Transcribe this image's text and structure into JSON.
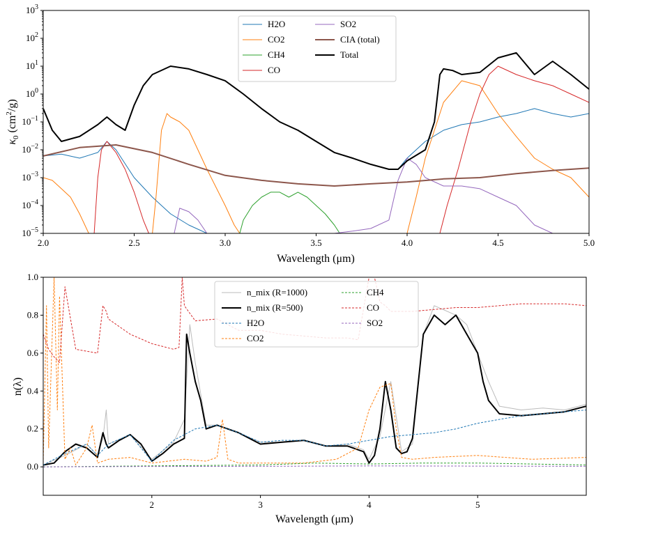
{
  "chart_data": [
    {
      "type": "line",
      "yscale": "log",
      "xlabel": "Wavelength (μm)",
      "ylabel_main": "κ",
      "ylabel_sub": "0",
      "ylabel_rest": " (cm",
      "ylabel_sup": "2",
      "ylabel_end": "/g)",
      "xlim": [
        2.0,
        5.0
      ],
      "ylim": [
        1e-05,
        1000
      ],
      "xticks": [
        2.0,
        2.5,
        3.0,
        3.5,
        4.0,
        4.5,
        5.0
      ],
      "xtick_labels": [
        "2.0",
        "2.5",
        "3.0",
        "3.5",
        "4.0",
        "4.5",
        "5.0"
      ],
      "ytick_exponents": [
        -5,
        -4,
        -3,
        -2,
        -1,
        0,
        1,
        2,
        3
      ],
      "ytick_base": "10",
      "legend_loc": "upper center",
      "series": [
        {
          "name": "H2O",
          "color": "#1f77b4",
          "lw": 1,
          "x": [
            2.0,
            2.1,
            2.2,
            2.3,
            2.35,
            2.4,
            2.5,
            2.6,
            2.7,
            2.8,
            2.9
          ],
          "y": [
            0.006,
            0.007,
            0.005,
            0.008,
            0.02,
            0.01,
            0.001,
            0.0002,
            5e-05,
            2e-05,
            1e-05
          ]
        },
        {
          "name": "H2O",
          "color": "#1f77b4",
          "lw": 1,
          "x": [
            3.95,
            4.0,
            4.1,
            4.2,
            4.3,
            4.4,
            4.5,
            4.6,
            4.7,
            4.8,
            4.9,
            5.0
          ],
          "y": [
            0.002,
            0.005,
            0.02,
            0.05,
            0.08,
            0.1,
            0.15,
            0.2,
            0.3,
            0.2,
            0.15,
            0.2
          ]
        },
        {
          "name": "CO2",
          "color": "#ff7f0e",
          "lw": 1,
          "x": [
            2.0,
            2.05,
            2.1,
            2.15,
            2.2,
            2.25
          ],
          "y": [
            0.001,
            0.0008,
            0.0004,
            0.0002,
            5e-05,
            1e-05
          ]
        },
        {
          "name": "CO2",
          "color": "#ff7f0e",
          "lw": 1,
          "x": [
            2.6,
            2.62,
            2.65,
            2.68,
            2.7,
            2.75,
            2.8,
            2.85,
            2.9,
            3.0,
            3.05,
            3.08
          ],
          "y": [
            1e-05,
            0.0002,
            0.05,
            0.2,
            0.15,
            0.1,
            0.05,
            0.01,
            0.002,
            0.0001,
            2e-05,
            1e-05
          ]
        },
        {
          "name": "CO2",
          "color": "#ff7f0e",
          "lw": 1,
          "x": [
            4.0,
            4.05,
            4.1,
            4.15,
            4.2,
            4.3,
            4.4,
            4.5,
            4.6,
            4.7,
            4.8,
            4.9,
            5.0
          ],
          "y": [
            1e-05,
            0.0002,
            0.005,
            0.05,
            0.5,
            3,
            2,
            0.2,
            0.03,
            0.005,
            0.002,
            0.001,
            0.0002
          ]
        },
        {
          "name": "CH4",
          "color": "#2ca02c",
          "lw": 1,
          "x": [
            3.08,
            3.1,
            3.15,
            3.2,
            3.25,
            3.3,
            3.35,
            3.4,
            3.45,
            3.5,
            3.55,
            3.6,
            3.63
          ],
          "y": [
            1e-05,
            3e-05,
            0.0001,
            0.0002,
            0.0003,
            0.0003,
            0.0002,
            0.0003,
            0.0002,
            0.0001,
            5e-05,
            2e-05,
            1e-05
          ]
        },
        {
          "name": "CO",
          "color": "#d62728",
          "lw": 1,
          "x": [
            2.28,
            2.3,
            2.32,
            2.35,
            2.4,
            2.45,
            2.5,
            2.55,
            2.58
          ],
          "y": [
            1e-05,
            0.001,
            0.01,
            0.02,
            0.008,
            0.002,
            0.0003,
            3e-05,
            1e-05
          ]
        },
        {
          "name": "CO",
          "color": "#d62728",
          "lw": 1,
          "x": [
            4.18,
            4.22,
            4.28,
            4.35,
            4.4,
            4.45,
            4.5,
            4.6,
            4.7,
            4.8,
            4.9,
            5.0
          ],
          "y": [
            1e-05,
            0.0001,
            0.002,
            0.1,
            1,
            5,
            10,
            5,
            3,
            2,
            1,
            0.5
          ]
        },
        {
          "name": "SO2",
          "color": "#9467bd",
          "lw": 1,
          "x": [
            2.72,
            2.75,
            2.8,
            2.85,
            2.9
          ],
          "y": [
            1e-05,
            8e-05,
            6e-05,
            3e-05,
            1e-05
          ]
        },
        {
          "name": "SO2",
          "color": "#9467bd",
          "lw": 1,
          "x": [
            3.6,
            3.7,
            3.8,
            3.9,
            3.95,
            4.0,
            4.05,
            4.1,
            4.2,
            4.3,
            4.4,
            4.5,
            4.6,
            4.7,
            4.8
          ],
          "y": [
            1e-05,
            1.2e-05,
            1.5e-05,
            3e-05,
            0.0008,
            0.005,
            0.003,
            0.001,
            0.0005,
            0.0005,
            0.0004,
            0.0002,
            0.0001,
            2e-05,
            1e-05
          ]
        },
        {
          "name": "CIA (total)",
          "color": "#8c564b",
          "lw": 2,
          "x": [
            2.0,
            2.2,
            2.4,
            2.6,
            2.8,
            3.0,
            3.2,
            3.4,
            3.6,
            3.8,
            4.0,
            4.2,
            4.4,
            4.6,
            4.8,
            5.0
          ],
          "y": [
            0.006,
            0.012,
            0.015,
            0.008,
            0.003,
            0.0012,
            0.0008,
            0.0006,
            0.0005,
            0.0006,
            0.0007,
            0.0009,
            0.001,
            0.0014,
            0.0018,
            0.0022
          ]
        },
        {
          "name": "Total",
          "color": "#000000",
          "lw": 2,
          "x": [
            2.0,
            2.05,
            2.1,
            2.2,
            2.3,
            2.35,
            2.4,
            2.45,
            2.5,
            2.55,
            2.6,
            2.7,
            2.8,
            2.9,
            3.0,
            3.1,
            3.2,
            3.3,
            3.4,
            3.5,
            3.6,
            3.7,
            3.8,
            3.9,
            3.95,
            4.0,
            4.1,
            4.15,
            4.18,
            4.2,
            4.25,
            4.3,
            4.4,
            4.5,
            4.6,
            4.7,
            4.8,
            4.9,
            5.0
          ],
          "y": [
            0.3,
            0.05,
            0.02,
            0.03,
            0.08,
            0.15,
            0.08,
            0.05,
            0.4,
            2,
            5,
            10,
            8,
            5,
            3,
            1,
            0.3,
            0.1,
            0.05,
            0.02,
            0.008,
            0.005,
            0.003,
            0.002,
            0.002,
            0.004,
            0.01,
            0.1,
            5,
            8,
            7,
            5,
            6,
            20,
            30,
            5,
            15,
            5,
            1.5
          ]
        }
      ]
    },
    {
      "type": "line",
      "xlabel": "Wavelength (μm)",
      "ylabel": "n(λ)",
      "xlim": [
        1.0,
        6.0
      ],
      "ylim": [
        -0.15,
        1.0
      ],
      "xticks": [
        2,
        3,
        4,
        5
      ],
      "xtick_labels": [
        "2",
        "3",
        "4",
        "5"
      ],
      "yticks": [
        0.0,
        0.2,
        0.4,
        0.6,
        0.8,
        1.0
      ],
      "ytick_labels": [
        "0.0",
        "0.2",
        "0.4",
        "0.6",
        "0.8",
        "1.0"
      ],
      "legend_loc": "upper center",
      "series": [
        {
          "name": "n_mix (R=1000)",
          "color": "#bbbbbb",
          "lw": 1,
          "style": "solid",
          "x": [
            1.0,
            1.2,
            1.4,
            1.5,
            1.55,
            1.58,
            1.6,
            1.8,
            2.0,
            2.2,
            2.3,
            2.35,
            2.4,
            2.5,
            2.6,
            2.8,
            3.0,
            3.2,
            3.4,
            3.6,
            3.8,
            3.95,
            4.0,
            4.1,
            4.2,
            4.3,
            4.4,
            4.5,
            4.6,
            4.8,
            4.9,
            5.0,
            5.1,
            5.2,
            5.4,
            5.6,
            5.8,
            6.0
          ],
          "y": [
            0.01,
            0.06,
            0.12,
            0.06,
            0.15,
            0.3,
            0.12,
            0.17,
            0.04,
            0.13,
            0.25,
            0.75,
            0.55,
            0.22,
            0.22,
            0.18,
            0.13,
            0.13,
            0.14,
            0.11,
            0.12,
            0.09,
            0.04,
            0.16,
            0.45,
            0.08,
            0.12,
            0.7,
            0.85,
            0.8,
            0.75,
            0.6,
            0.45,
            0.32,
            0.3,
            0.31,
            0.3,
            0.33
          ]
        },
        {
          "name": "n_mix (R=500)",
          "color": "#000000",
          "lw": 2,
          "style": "solid",
          "x": [
            1.0,
            1.1,
            1.2,
            1.3,
            1.4,
            1.5,
            1.55,
            1.58,
            1.6,
            1.7,
            1.8,
            1.9,
            2.0,
            2.1,
            2.2,
            2.3,
            2.32,
            2.35,
            2.4,
            2.45,
            2.5,
            2.6,
            2.8,
            3.0,
            3.2,
            3.4,
            3.6,
            3.8,
            3.95,
            4.0,
            4.05,
            4.1,
            4.15,
            4.2,
            4.25,
            4.3,
            4.35,
            4.4,
            4.5,
            4.6,
            4.7,
            4.8,
            4.9,
            5.0,
            5.05,
            5.1,
            5.2,
            5.4,
            5.6,
            5.8,
            6.0
          ],
          "y": [
            0.01,
            0.02,
            0.08,
            0.12,
            0.1,
            0.05,
            0.18,
            0.12,
            0.1,
            0.14,
            0.17,
            0.12,
            0.03,
            0.07,
            0.12,
            0.15,
            0.7,
            0.6,
            0.45,
            0.35,
            0.2,
            0.22,
            0.18,
            0.12,
            0.13,
            0.14,
            0.11,
            0.11,
            0.08,
            0.02,
            0.06,
            0.2,
            0.45,
            0.3,
            0.1,
            0.07,
            0.08,
            0.15,
            0.7,
            0.8,
            0.75,
            0.8,
            0.7,
            0.6,
            0.45,
            0.35,
            0.28,
            0.27,
            0.28,
            0.29,
            0.32
          ]
        },
        {
          "name": "H2O",
          "color": "#1f77b4",
          "lw": 1,
          "style": "dashed",
          "x": [
            1.0,
            1.2,
            1.4,
            1.5,
            1.6,
            1.8,
            2.0,
            2.2,
            2.4,
            2.6,
            2.8,
            3.0,
            3.2,
            3.4,
            3.6,
            3.8,
            4.0,
            4.2,
            4.4,
            4.6,
            4.8,
            5.0,
            5.2,
            5.4,
            5.6,
            5.8,
            6.0
          ],
          "y": [
            0.01,
            0.07,
            0.12,
            0.06,
            0.12,
            0.17,
            0.03,
            0.14,
            0.2,
            0.22,
            0.18,
            0.13,
            0.14,
            0.14,
            0.11,
            0.12,
            0.14,
            0.16,
            0.17,
            0.18,
            0.2,
            0.23,
            0.25,
            0.27,
            0.28,
            0.29,
            0.3
          ]
        },
        {
          "name": "CO2",
          "color": "#ff7f0e",
          "lw": 1,
          "style": "dashed",
          "x": [
            1.0,
            1.03,
            1.05,
            1.1,
            1.13,
            1.15,
            1.2,
            1.25,
            1.3,
            1.4,
            1.45,
            1.5,
            1.6,
            1.8,
            2.0,
            2.3,
            2.5,
            2.6,
            2.65,
            2.7,
            2.8,
            3.0,
            3.4,
            3.7,
            3.9,
            4.0,
            4.1,
            4.2,
            4.25,
            4.3,
            4.4,
            4.6,
            5.0,
            5.5,
            6.0
          ],
          "y": [
            0.02,
            0.85,
            0.1,
            1.0,
            0.3,
            0.9,
            0.04,
            0.1,
            0.01,
            0.1,
            0.22,
            0.02,
            0.04,
            0.05,
            0.02,
            0.04,
            0.03,
            0.05,
            0.25,
            0.04,
            0.02,
            0.02,
            0.02,
            0.04,
            0.1,
            0.3,
            0.42,
            0.44,
            0.2,
            0.05,
            0.04,
            0.05,
            0.06,
            0.04,
            0.05
          ]
        },
        {
          "name": "CH4",
          "color": "#2ca02c",
          "lw": 1,
          "style": "dashed",
          "x": [
            1.0,
            2.0,
            3.0,
            3.5,
            4.0,
            4.5,
            5.0,
            5.5,
            6.0
          ],
          "y": [
            0.0,
            0.005,
            0.01,
            0.02,
            0.015,
            0.02,
            0.02,
            0.015,
            0.01
          ]
        },
        {
          "name": "CO",
          "color": "#d62728",
          "lw": 1,
          "style": "dashed",
          "x": [
            1.0,
            1.05,
            1.1,
            1.15,
            1.2,
            1.3,
            1.5,
            1.55,
            1.58,
            1.6,
            1.8,
            2.0,
            2.2,
            2.25,
            2.28,
            2.3,
            2.4,
            2.6,
            2.8,
            3.0,
            3.2,
            3.4,
            3.6,
            3.8,
            3.9,
            4.0,
            4.05,
            4.1,
            4.15,
            4.2,
            4.4,
            4.6,
            4.8,
            5.0,
            5.2,
            5.4,
            5.6,
            5.8,
            6.0
          ],
          "y": [
            0.7,
            0.62,
            0.58,
            0.55,
            0.95,
            0.62,
            0.6,
            0.85,
            0.82,
            0.78,
            0.7,
            0.65,
            0.62,
            0.63,
            1.0,
            0.85,
            0.77,
            0.78,
            0.72,
            0.72,
            0.7,
            0.69,
            0.68,
            0.68,
            0.67,
            1.0,
            1.0,
            0.87,
            0.85,
            0.82,
            0.82,
            0.83,
            0.84,
            0.84,
            0.85,
            0.86,
            0.86,
            0.86,
            0.85
          ]
        },
        {
          "name": "SO2",
          "color": "#9467bd",
          "lw": 1,
          "style": "dashed",
          "x": [
            1.0,
            2.0,
            3.0,
            4.0,
            5.0,
            6.0
          ],
          "y": [
            0.0,
            0.002,
            0.003,
            0.005,
            0.004,
            0.003
          ]
        }
      ]
    }
  ],
  "legend1": {
    "col1": [
      "H2O",
      "CO2",
      "CH4",
      "CO"
    ],
    "col2": [
      "SO2",
      "CIA (total)",
      "Total"
    ]
  },
  "legend2": {
    "col1": [
      "n_mix (R=1000)",
      "n_mix (R=500)",
      "H2O",
      "CO2"
    ],
    "col2": [
      "CH4",
      "CO",
      "SO2"
    ]
  }
}
